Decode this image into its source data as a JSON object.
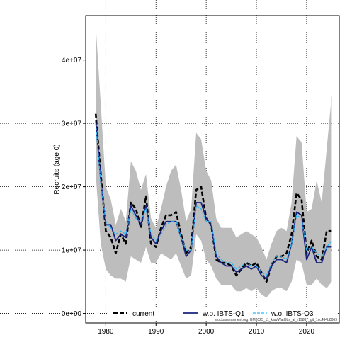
{
  "chart_data": {
    "type": "line",
    "title": "",
    "xlabel": "",
    "ylabel": "Recruits (age 0)",
    "xlim": [
      1976,
      2026.5
    ],
    "ylim": [
      -1500000,
      47000000
    ],
    "x_ticks": [
      1980,
      1990,
      2000,
      2010,
      2020
    ],
    "x_tick_labels": [
      "1980",
      "1990",
      "2000",
      "2010",
      "2020"
    ],
    "y_ticks": [
      0,
      10000000,
      20000000,
      30000000,
      40000000
    ],
    "y_tick_labels": [
      "0e+00",
      "1e+07",
      "2e+07",
      "3e+07",
      "4e+07"
    ],
    "grid": true,
    "legend_position": "bottom",
    "x": [
      1978,
      1979,
      1980,
      1981,
      1982,
      1983,
      1984,
      1985,
      1986,
      1987,
      1988,
      1989,
      1990,
      1991,
      1992,
      1993,
      1994,
      1995,
      1996,
      1997,
      1998,
      1999,
      2000,
      2001,
      2002,
      2003,
      2004,
      2005,
      2006,
      2007,
      2008,
      2009,
      2010,
      2011,
      2012,
      2013,
      2014,
      2015,
      2016,
      2017,
      2018,
      2019,
      2020,
      2021,
      2022,
      2023,
      2024,
      2025
    ],
    "band": {
      "upper": [
        45500000,
        33000000,
        20000000,
        18000000,
        14000000,
        16500000,
        14500000,
        24000000,
        22500000,
        19500000,
        22000000,
        15000000,
        13500000,
        16500000,
        20000000,
        22500000,
        23500000,
        19500000,
        14500000,
        16500000,
        28500000,
        27500000,
        22500000,
        21000000,
        15000000,
        13500000,
        13500000,
        13500000,
        12000000,
        12500000,
        13000000,
        12500000,
        12000000,
        10500000,
        8500000,
        11000000,
        13000000,
        13500000,
        13000000,
        17500000,
        28000000,
        27000000,
        16000000,
        16500000,
        21000000,
        17500000,
        26000000,
        34500000
      ],
      "lower": [
        22000000,
        11000000,
        7000000,
        6000000,
        5500000,
        5500000,
        5000000,
        9000000,
        8500000,
        8000000,
        10500000,
        8000000,
        8000000,
        9500000,
        9000000,
        8500000,
        9500000,
        7500000,
        5500000,
        6000000,
        12500000,
        11500000,
        8500000,
        7500000,
        5500000,
        4500000,
        4500000,
        4500000,
        3500000,
        3500000,
        4000000,
        3500000,
        4000000,
        3000000,
        2500000,
        3500000,
        4000000,
        4000000,
        3500000,
        5000000,
        8500000,
        8000000,
        4500000,
        4500000,
        5500000,
        4500000,
        4000000,
        5000000
      ]
    },
    "series": [
      {
        "name": "current",
        "color": "#000000",
        "values": [
          31500000,
          22000000,
          13000000,
          12000000,
          9500000,
          12500000,
          11000000,
          17500000,
          16500000,
          13500000,
          18500000,
          11000000,
          10500000,
          13500000,
          15500000,
          15500000,
          16000000,
          12500000,
          9500000,
          10500000,
          19500000,
          20000000,
          15000000,
          14000000,
          8500000,
          8000000,
          8000000,
          7500000,
          6000000,
          7000000,
          8000000,
          7500000,
          8000000,
          6500000,
          5000000,
          7500000,
          9000000,
          9000000,
          9500000,
          12500000,
          19000000,
          18000000,
          9500000,
          11500000,
          9000000,
          8500000,
          13000000,
          13000000
        ]
      },
      {
        "name": "w.o. IBTS-Q1",
        "color": "#1a237e",
        "values": [
          30500000,
          21000000,
          14000000,
          14000000,
          11500000,
          12500000,
          12000000,
          17000000,
          15500000,
          14000000,
          17000000,
          12000000,
          11000000,
          13000000,
          14500000,
          14500000,
          14500000,
          12000000,
          9000000,
          10000000,
          17500000,
          17500000,
          15000000,
          14000000,
          9000000,
          8000000,
          7500000,
          7500000,
          6500000,
          7000000,
          7500000,
          7000000,
          7500000,
          6000000,
          5500000,
          7500000,
          8500000,
          8500000,
          8000000,
          11000000,
          16000000,
          15500000,
          8500000,
          10500000,
          8000000,
          8000000,
          10500000,
          10500000
        ]
      },
      {
        "name": "w.o. IBTS-Q3",
        "color": "#29b6f6",
        "values": [
          30000000,
          20500000,
          14500000,
          13500000,
          12500000,
          13000000,
          12500000,
          16500000,
          15000000,
          14500000,
          16500000,
          12500000,
          11500000,
          12500000,
          14000000,
          14500000,
          14500000,
          12000000,
          10000000,
          10000000,
          17000000,
          16500000,
          14500000,
          14500000,
          9500000,
          8500000,
          8000000,
          8000000,
          7000000,
          7500000,
          8000000,
          7500000,
          7500000,
          6500000,
          6000000,
          8000000,
          9000000,
          9000000,
          8500000,
          11000000,
          15500000,
          15000000,
          10000000,
          10500000,
          9500000,
          9000000,
          10500000,
          11500000
        ]
      }
    ],
    "band_color": "#bdbdbd"
  },
  "footnote": "stockassessment.org, BM2025_11_kaa/WatObs_at_r19887_git_1cc484b8069"
}
